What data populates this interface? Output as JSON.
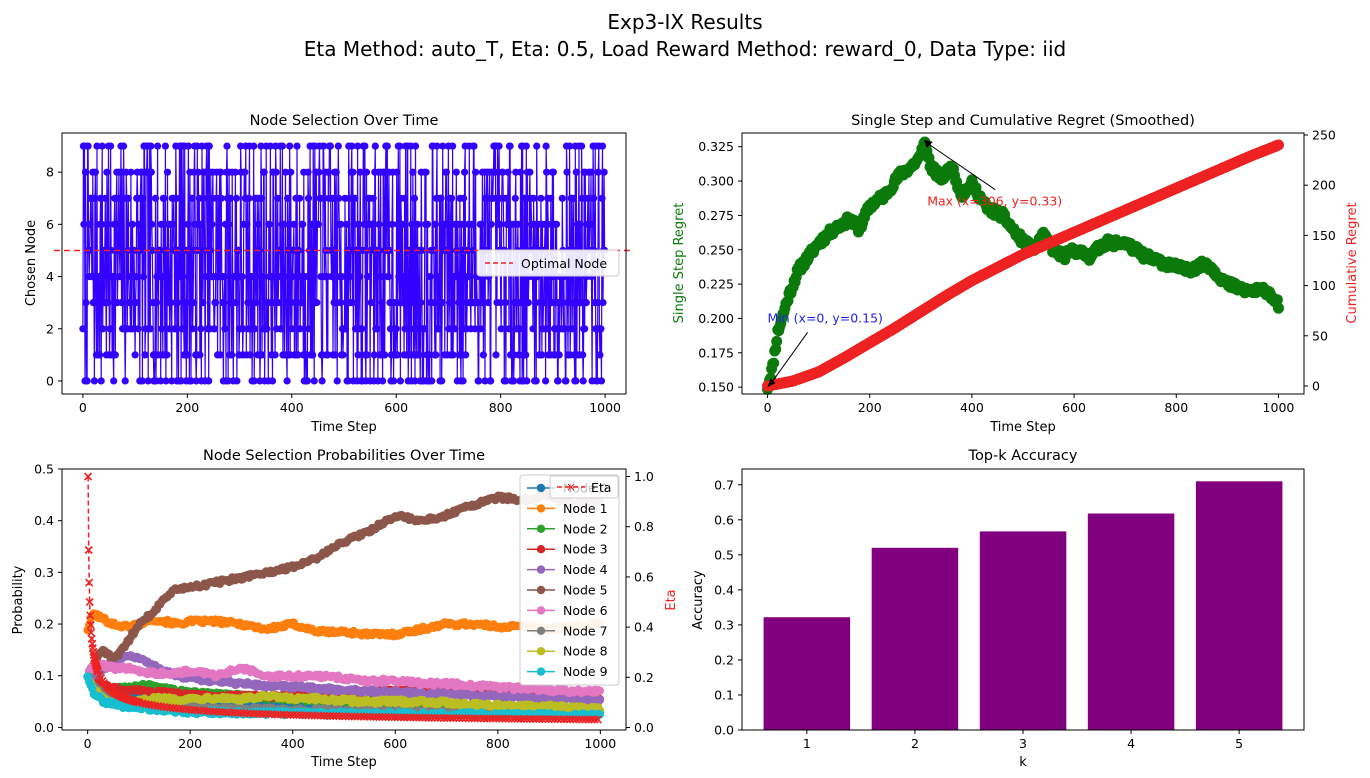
{
  "figure": {
    "title": "Exp3-IX Results",
    "subtitle": "Eta Method: auto_T, Eta: 0.5, Load Reward Method: reward_0, Data Type: iid"
  },
  "colors": {
    "blue": "#3300ff",
    "green": "#0b7a0b",
    "red": "#ee2222",
    "purple": "#800080"
  },
  "chart_data": [
    {
      "id": "node-selection",
      "type": "line",
      "title": "Node Selection Over Time",
      "xlabel": "Time Step",
      "ylabel": "Chosen Node",
      "xlim": [
        -40,
        1040
      ],
      "ylim": [
        -0.5,
        9.5
      ],
      "xticks": [
        "0",
        "200",
        "400",
        "600",
        "800",
        "1000"
      ],
      "yticks": [
        "0",
        "2",
        "4",
        "6",
        "8"
      ],
      "series": [
        {
          "description": "chosen node index per step (0-9), 1000 steps, rapidly switching",
          "x_range": [
            0,
            999
          ],
          "values_domain": [
            0,
            9
          ]
        }
      ],
      "reference_line": {
        "y": 5,
        "style": "dashed",
        "color": "#ee2222",
        "label": "Optimal Node"
      },
      "legend": {
        "position": "center-right",
        "entries": [
          "Optimal Node"
        ]
      }
    },
    {
      "id": "regret",
      "type": "line",
      "title": "Single Step and Cumulative Regret (Smoothed)",
      "xlabel": "Time Step",
      "ylabel": "Single Step Regret",
      "ylabel_right": "Cumulative Regret",
      "xlim": [
        -50,
        1050
      ],
      "ylim": [
        0.145,
        0.335
      ],
      "ylim_right": [
        -8,
        252
      ],
      "xticks": [
        "0",
        "200",
        "400",
        "600",
        "800",
        "1000"
      ],
      "yticks": [
        "0.150",
        "0.175",
        "0.200",
        "0.225",
        "0.250",
        "0.275",
        "0.300",
        "0.325"
      ],
      "yticks_right": [
        "0",
        "50",
        "100",
        "150",
        "200",
        "250"
      ],
      "series": [
        {
          "name": "Single Step Regret",
          "axis": "left",
          "color": "#0b7a0b",
          "x": [
            0,
            10,
            20,
            40,
            60,
            80,
            100,
            130,
            160,
            180,
            200,
            230,
            260,
            280,
            300,
            306,
            320,
            340,
            360,
            380,
            400,
            430,
            460,
            490,
            520,
            540,
            560,
            580,
            600,
            630,
            660,
            700,
            740,
            780,
            820,
            860,
            900,
            940,
            980,
            1000
          ],
          "values": [
            0.15,
            0.165,
            0.19,
            0.215,
            0.235,
            0.245,
            0.255,
            0.265,
            0.272,
            0.265,
            0.282,
            0.29,
            0.305,
            0.31,
            0.318,
            0.33,
            0.31,
            0.302,
            0.31,
            0.29,
            0.298,
            0.28,
            0.275,
            0.26,
            0.25,
            0.26,
            0.25,
            0.245,
            0.25,
            0.245,
            0.255,
            0.255,
            0.245,
            0.24,
            0.235,
            0.24,
            0.225,
            0.22,
            0.22,
            0.21
          ]
        },
        {
          "name": "Cumulative Regret",
          "axis": "right",
          "color": "#ee2222",
          "x": [
            0,
            50,
            100,
            150,
            200,
            250,
            300,
            350,
            400,
            450,
            500,
            550,
            600,
            650,
            700,
            750,
            800,
            850,
            900,
            950,
            1000
          ],
          "values": [
            0,
            5,
            14,
            28,
            43,
            58,
            74,
            90,
            105,
            118,
            131,
            142,
            153,
            164,
            175,
            186,
            197,
            208,
            219,
            230,
            240
          ]
        }
      ],
      "annotations": [
        {
          "text": "Max (x=306, y=0.33)",
          "color": "#ee2222",
          "point": [
            306,
            0.33
          ],
          "text_at": [
            430,
            0.285
          ]
        },
        {
          "text": "Min (x=0, y=0.15)",
          "color": "#2222ee",
          "point": [
            0,
            0.15
          ],
          "text_at": [
            0,
            0.2
          ]
        }
      ]
    },
    {
      "id": "probabilities",
      "type": "line",
      "title": "Node Selection Probabilities Over Time",
      "xlabel": "Time Step",
      "ylabel": "Probability",
      "ylabel_right": "Eta",
      "xlim": [
        -50,
        1050
      ],
      "ylim": [
        -0.005,
        0.5
      ],
      "ylim_right": [
        -0.01,
        1.03
      ],
      "xticks": [
        "0",
        "200",
        "400",
        "600",
        "800",
        "1000"
      ],
      "yticks": [
        "0.0",
        "0.1",
        "0.2",
        "0.3",
        "0.4",
        "0.5"
      ],
      "yticks_right": [
        "0.0",
        "0.2",
        "0.4",
        "0.6",
        "0.8",
        "1.0"
      ],
      "x": [
        0,
        10,
        30,
        50,
        75,
        100,
        125,
        150,
        175,
        200,
        250,
        300,
        350,
        400,
        450,
        500,
        550,
        600,
        650,
        700,
        750,
        800,
        850,
        900,
        950,
        1000
      ],
      "series": [
        {
          "name": "Node 0",
          "color": "#1f77b4",
          "values": [
            0.1,
            0.09,
            0.075,
            0.07,
            0.065,
            0.06,
            0.058,
            0.055,
            0.053,
            0.05,
            0.048,
            0.045,
            0.044,
            0.042,
            0.041,
            0.04,
            0.039,
            0.038,
            0.037,
            0.036,
            0.036,
            0.035,
            0.035,
            0.034,
            0.034,
            0.033
          ]
        },
        {
          "name": "Node 1",
          "color": "#ff7f0e",
          "values": [
            0.19,
            0.22,
            0.21,
            0.2,
            0.195,
            0.2,
            0.21,
            0.205,
            0.2,
            0.205,
            0.205,
            0.2,
            0.19,
            0.2,
            0.185,
            0.185,
            0.18,
            0.18,
            0.19,
            0.2,
            0.2,
            0.195,
            0.195,
            0.19,
            0.195,
            0.2
          ]
        },
        {
          "name": "Node 2",
          "color": "#2ca02c",
          "values": [
            0.1,
            0.09,
            0.08,
            0.075,
            0.075,
            0.08,
            0.08,
            0.075,
            0.07,
            0.07,
            0.065,
            0.06,
            0.058,
            0.055,
            0.053,
            0.052,
            0.05,
            0.048,
            0.046,
            0.044,
            0.042,
            0.04,
            0.038,
            0.036,
            0.034,
            0.032
          ]
        },
        {
          "name": "Node 3",
          "color": "#d62728",
          "values": [
            0.1,
            0.09,
            0.08,
            0.075,
            0.07,
            0.07,
            0.068,
            0.066,
            0.064,
            0.062,
            0.06,
            0.06,
            0.06,
            0.062,
            0.065,
            0.068,
            0.07,
            0.072,
            0.07,
            0.068,
            0.07,
            0.068,
            0.065,
            0.062,
            0.06,
            0.058
          ]
        },
        {
          "name": "Node 4",
          "color": "#9467bd",
          "values": [
            0.1,
            0.1,
            0.11,
            0.13,
            0.14,
            0.135,
            0.12,
            0.11,
            0.1,
            0.095,
            0.09,
            0.085,
            0.08,
            0.078,
            0.075,
            0.072,
            0.07,
            0.068,
            0.066,
            0.064,
            0.062,
            0.06,
            0.058,
            0.056,
            0.054,
            0.052
          ]
        },
        {
          "name": "Node 5",
          "color": "#8c564b",
          "values": [
            0.1,
            0.12,
            0.15,
            0.13,
            0.16,
            0.2,
            0.22,
            0.25,
            0.27,
            0.27,
            0.28,
            0.29,
            0.3,
            0.31,
            0.33,
            0.36,
            0.38,
            0.41,
            0.4,
            0.41,
            0.43,
            0.445,
            0.44,
            0.45,
            0.43,
            0.44
          ]
        },
        {
          "name": "Node 6",
          "color": "#e377c2",
          "values": [
            0.1,
            0.12,
            0.12,
            0.115,
            0.115,
            0.11,
            0.105,
            0.105,
            0.105,
            0.11,
            0.1,
            0.115,
            0.1,
            0.1,
            0.1,
            0.095,
            0.09,
            0.09,
            0.085,
            0.085,
            0.08,
            0.078,
            0.075,
            0.072,
            0.07,
            0.068
          ]
        },
        {
          "name": "Node 7",
          "color": "#7f7f7f",
          "values": [
            0.1,
            0.08,
            0.065,
            0.055,
            0.05,
            0.045,
            0.042,
            0.04,
            0.038,
            0.037,
            0.036,
            0.035,
            0.034,
            0.033,
            0.033,
            0.032,
            0.032,
            0.031,
            0.031,
            0.03,
            0.03,
            0.03,
            0.029,
            0.029,
            0.028,
            0.028
          ]
        },
        {
          "name": "Node 8",
          "color": "#bcbd22",
          "values": [
            0.1,
            0.075,
            0.055,
            0.045,
            0.045,
            0.05,
            0.055,
            0.055,
            0.055,
            0.055,
            0.058,
            0.055,
            0.06,
            0.055,
            0.055,
            0.052,
            0.05,
            0.05,
            0.05,
            0.048,
            0.045,
            0.042,
            0.04,
            0.04,
            0.038,
            0.036
          ]
        },
        {
          "name": "Node 9",
          "color": "#17becf",
          "values": [
            0.1,
            0.07,
            0.05,
            0.045,
            0.04,
            0.038,
            0.036,
            0.034,
            0.032,
            0.03,
            0.029,
            0.028,
            0.028,
            0.027,
            0.027,
            0.026,
            0.026,
            0.026,
            0.025,
            0.025,
            0.025,
            0.024,
            0.024,
            0.024,
            0.024,
            0.024
          ]
        }
      ],
      "eta_series": {
        "name": "Eta",
        "color": "#ee2222",
        "style": "dashed-x",
        "x": [
          1,
          2,
          3,
          4,
          5,
          6,
          8,
          10,
          13,
          16,
          20,
          25,
          30,
          40,
          50,
          60,
          70,
          80,
          100,
          130,
          160,
          200,
          250,
          300,
          400,
          500,
          600,
          700,
          800,
          900,
          1000
        ],
        "values": [
          1.0,
          0.707,
          0.577,
          0.5,
          0.447,
          0.408,
          0.354,
          0.316,
          0.277,
          0.25,
          0.224,
          0.2,
          0.183,
          0.158,
          0.141,
          0.129,
          0.12,
          0.112,
          0.1,
          0.088,
          0.079,
          0.071,
          0.063,
          0.058,
          0.05,
          0.045,
          0.041,
          0.038,
          0.035,
          0.033,
          0.032
        ]
      },
      "legend": {
        "position": "upper-right",
        "entries": [
          "Node 0",
          "Node 1",
          "Node 2",
          "Node 3",
          "Node 4",
          "Node 5",
          "Node 6",
          "Node 7",
          "Node 8",
          "Node 9"
        ],
        "extra_entry": "Eta"
      }
    },
    {
      "id": "topk",
      "type": "bar",
      "title": "Top-k Accuracy",
      "xlabel": "k",
      "ylabel": "Accuracy",
      "categories": [
        "1",
        "2",
        "3",
        "4",
        "5"
      ],
      "values": [
        0.322,
        0.52,
        0.567,
        0.618,
        0.71
      ],
      "ylim": [
        0,
        0.745
      ],
      "yticks": [
        "0.0",
        "0.1",
        "0.2",
        "0.3",
        "0.4",
        "0.5",
        "0.6",
        "0.7"
      ],
      "color": "#800080"
    }
  ]
}
